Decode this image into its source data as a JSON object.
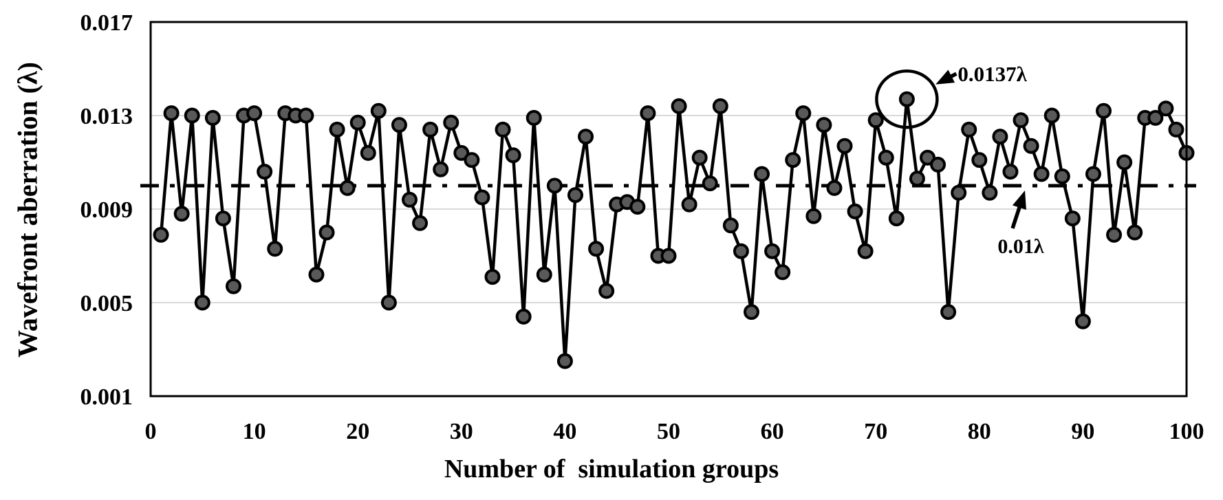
{
  "figure": {
    "y_axis": {
      "title": "Wavefront aberration (λ)",
      "tick_values": [
        0.017,
        0.013,
        0.009,
        0.005,
        0.001
      ],
      "tick_labels": [
        "0.017",
        "0.013",
        "0.009",
        "0.005",
        "0.001"
      ],
      "min": 0.001,
      "max": 0.017
    },
    "x_axis": {
      "title": "Number of  simulation groups",
      "tick_values": [
        0,
        10,
        20,
        30,
        40,
        50,
        60,
        70,
        80,
        90,
        100
      ],
      "tick_labels": [
        "0",
        "10",
        "20",
        "30",
        "40",
        "50",
        "60",
        "70",
        "80",
        "90",
        "100"
      ],
      "min": 0,
      "max": 100
    },
    "reference_line": {
      "value": 0.01,
      "label": "0.01λ",
      "style": "dash-dot"
    },
    "max_annotation": {
      "point_x": 73,
      "point_value": 0.0137,
      "label": "0.0137λ",
      "marker": "circle-outline"
    },
    "colors": {
      "line": "#000000",
      "marker_fill": "#595959",
      "marker_stroke": "#000000",
      "gridline": "#d9d9d9",
      "frame": "#000000",
      "annotation": "#000000",
      "background": "#ffffff"
    }
  },
  "chart_data": {
    "type": "line",
    "title": "",
    "xlabel": "Number of  simulation groups",
    "ylabel": "Wavefront aberration (λ)",
    "xlim": [
      0,
      100
    ],
    "ylim": [
      0.001,
      0.017
    ],
    "xticks": [
      0,
      10,
      20,
      30,
      40,
      50,
      60,
      70,
      80,
      90,
      100
    ],
    "yticks": [
      0.001,
      0.005,
      0.009,
      0.013,
      0.017
    ],
    "grid": "horizontal",
    "legend": "none",
    "reference_line": 0.01,
    "marker": "filled-circle",
    "x": [
      1,
      2,
      3,
      4,
      5,
      6,
      7,
      8,
      9,
      10,
      11,
      12,
      13,
      14,
      15,
      16,
      17,
      18,
      19,
      20,
      21,
      22,
      23,
      24,
      25,
      26,
      27,
      28,
      29,
      30,
      31,
      32,
      33,
      34,
      35,
      36,
      37,
      38,
      39,
      40,
      41,
      42,
      43,
      44,
      45,
      46,
      47,
      48,
      49,
      50,
      51,
      52,
      53,
      54,
      55,
      56,
      57,
      58,
      59,
      60,
      61,
      62,
      63,
      64,
      65,
      66,
      67,
      68,
      69,
      70,
      71,
      72,
      73,
      74,
      75,
      76,
      77,
      78,
      79,
      80,
      81,
      82,
      83,
      84,
      85,
      86,
      87,
      88,
      89,
      90,
      91,
      92,
      93,
      94,
      95,
      96,
      97,
      98,
      99,
      100
    ],
    "values": [
      0.0079,
      0.0131,
      0.0088,
      0.013,
      0.005,
      0.0129,
      0.0086,
      0.0057,
      0.013,
      0.0131,
      0.0106,
      0.0073,
      0.0131,
      0.013,
      0.013,
      0.0062,
      0.008,
      0.0124,
      0.0099,
      0.0127,
      0.0114,
      0.0132,
      0.005,
      0.0126,
      0.0094,
      0.0084,
      0.0124,
      0.0107,
      0.0127,
      0.0114,
      0.0111,
      0.0095,
      0.0061,
      0.0124,
      0.0113,
      0.0044,
      0.0129,
      0.0062,
      0.01,
      0.0025,
      0.0096,
      0.0121,
      0.0073,
      0.0055,
      0.0092,
      0.0093,
      0.0091,
      0.0131,
      0.007,
      0.007,
      0.0134,
      0.0092,
      0.0112,
      0.0101,
      0.0134,
      0.0083,
      0.0072,
      0.0046,
      0.0105,
      0.0072,
      0.0063,
      0.0111,
      0.0131,
      0.0087,
      0.0126,
      0.0099,
      0.0117,
      0.0089,
      0.0072,
      0.0128,
      0.0112,
      0.0086,
      0.0137,
      0.0103,
      0.0112,
      0.0109,
      0.0046,
      0.0097,
      0.0124,
      0.0111,
      0.0097,
      0.0121,
      0.0106,
      0.0128,
      0.0117,
      0.0105,
      0.013,
      0.0104,
      0.0086,
      0.0042,
      0.0105,
      0.0132,
      0.0079,
      0.011,
      0.008,
      0.0129,
      0.0129,
      0.0133,
      0.0124,
      0.0114
    ],
    "annotations": [
      {
        "type": "circled-point",
        "x": 73,
        "y": 0.0137,
        "text": "0.0137λ"
      },
      {
        "type": "reference-label",
        "y": 0.01,
        "text": "0.01λ"
      }
    ]
  }
}
